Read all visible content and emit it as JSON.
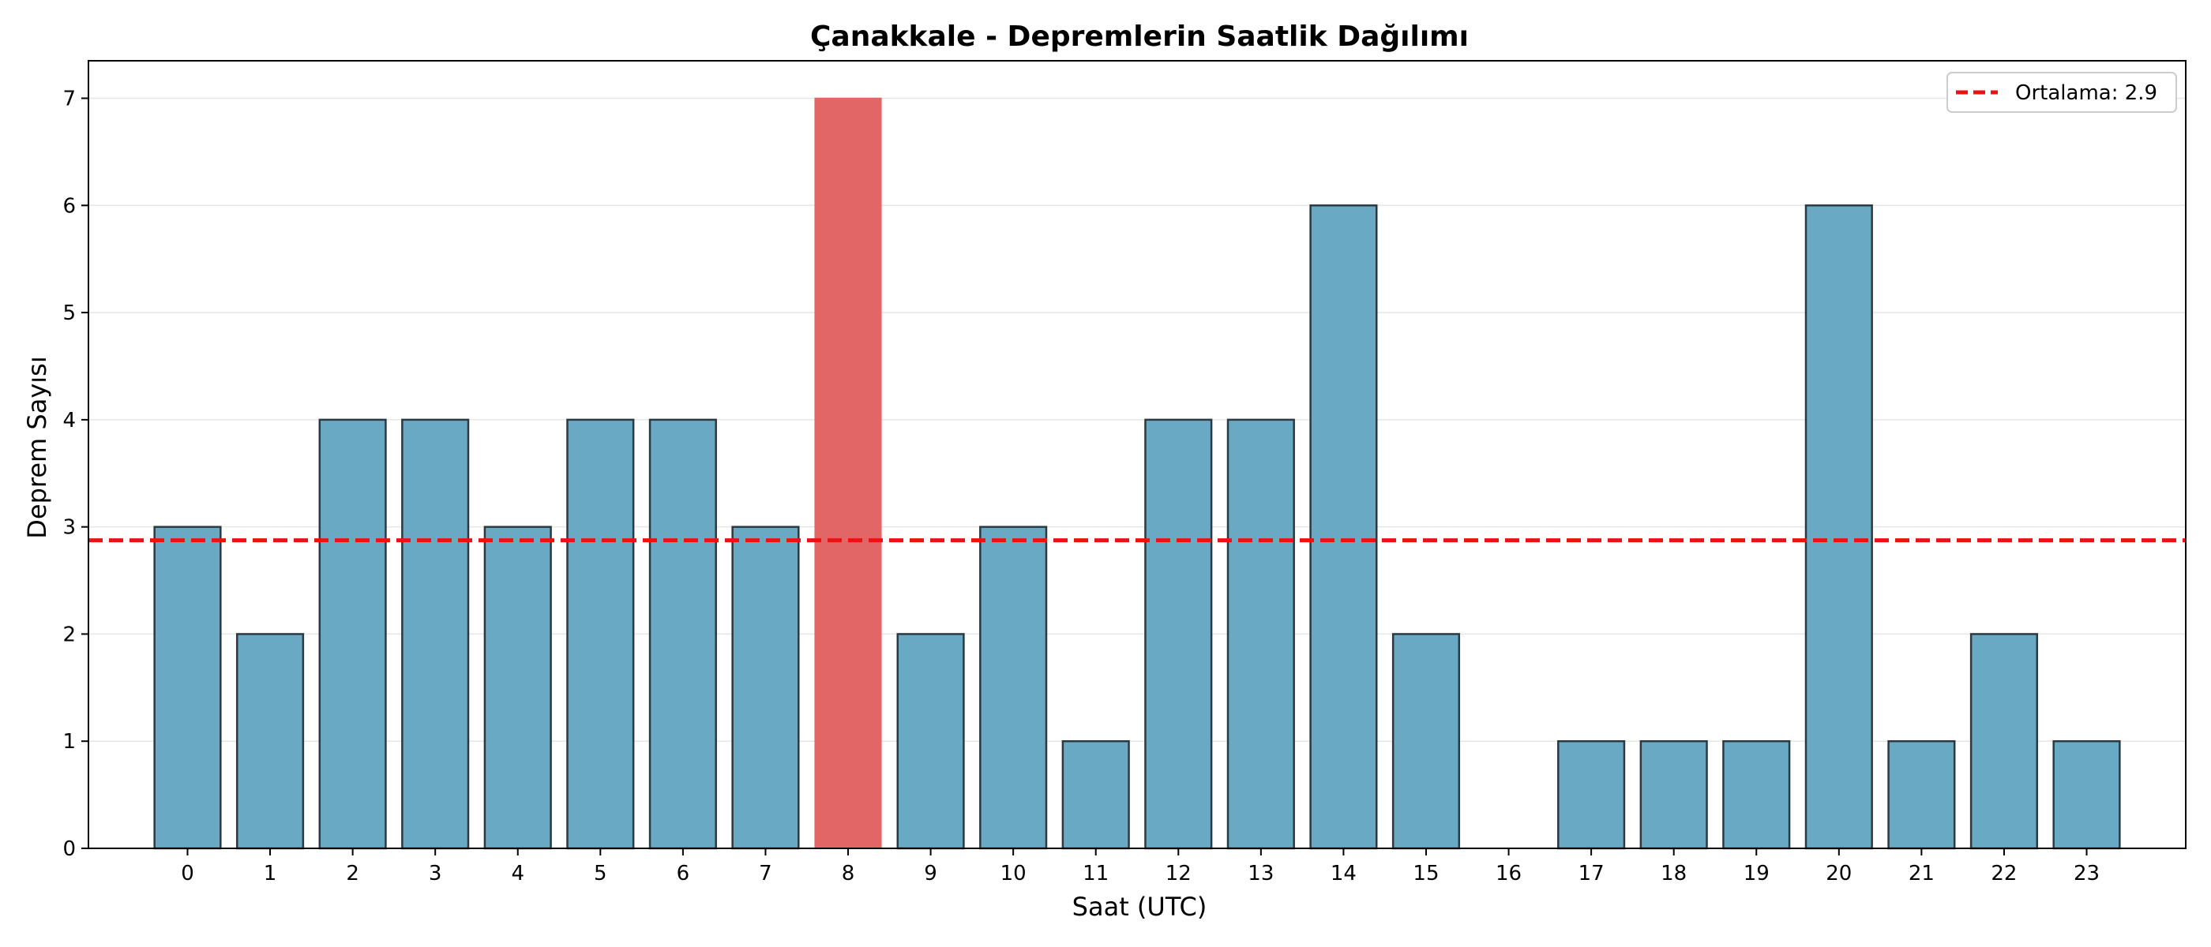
{
  "chart_data": {
    "type": "bar",
    "title": "Çanakkale - Depremlerin Saatlik Dağılımı",
    "xlabel": "Saat (UTC)",
    "ylabel": "Deprem Sayısı",
    "categories": [
      "0",
      "1",
      "2",
      "3",
      "4",
      "5",
      "6",
      "7",
      "8",
      "9",
      "10",
      "11",
      "12",
      "13",
      "14",
      "15",
      "16",
      "17",
      "18",
      "19",
      "20",
      "21",
      "22",
      "23"
    ],
    "values": [
      3,
      2,
      4,
      4,
      3,
      4,
      4,
      3,
      7,
      2,
      3,
      1,
      4,
      4,
      6,
      2,
      0,
      1,
      1,
      1,
      6,
      1,
      2,
      1
    ],
    "yticks": [
      "0",
      "1",
      "2",
      "3",
      "4",
      "5",
      "6",
      "7"
    ],
    "ylim": [
      0,
      7.35
    ],
    "xlim": [
      -1.2,
      24.2
    ],
    "highlight_index": 8,
    "mean_line": {
      "value": 2.875,
      "label": "Ortalama: 2.9"
    },
    "legend_position": "top-right",
    "grid": "y",
    "colors": {
      "bar": "#6aa9c4",
      "highlight": "#e36666",
      "edge": "#2b3a42",
      "mean_line": "#ee1111",
      "grid": "#e6e6e6"
    }
  }
}
